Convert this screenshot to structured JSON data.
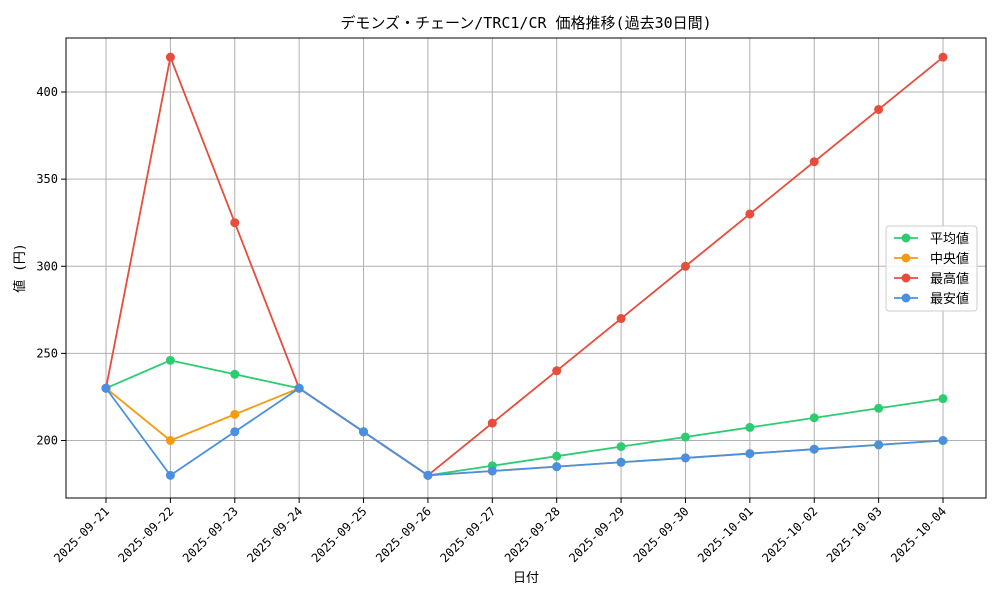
{
  "chart_data": {
    "type": "line",
    "title": "デモンズ・チェーン/TRC1/CR 価格推移(過去30日間)",
    "xlabel": "日付",
    "ylabel": "値 (円)",
    "categories": [
      "2025-09-21",
      "2025-09-22",
      "2025-09-23",
      "2025-09-24",
      "2025-09-25",
      "2025-09-26",
      "2025-09-27",
      "2025-09-28",
      "2025-09-29",
      "2025-09-30",
      "2025-10-01",
      "2025-10-02",
      "2025-10-03",
      "2025-10-04"
    ],
    "ylim": [
      167,
      431
    ],
    "yticks": [
      200,
      250,
      300,
      350,
      400
    ],
    "grid": true,
    "legend_position": "right",
    "series": [
      {
        "name": "平均値",
        "color": "#2ecc71",
        "values": [
          230,
          246,
          238,
          230,
          205,
          180,
          185.5,
          191,
          196.5,
          202,
          207.5,
          213,
          218.5,
          224
        ]
      },
      {
        "name": "中央値",
        "color": "#f39c12",
        "values": [
          230,
          200,
          215,
          230,
          205,
          180,
          182.5,
          185,
          187.5,
          190,
          192.5,
          195,
          197.5,
          200
        ]
      },
      {
        "name": "最高値",
        "color": "#e74c3c",
        "values": [
          230,
          420,
          325,
          230,
          205,
          180,
          210,
          240,
          270,
          300,
          330,
          360,
          390,
          420
        ]
      },
      {
        "name": "最安値",
        "color": "#4a90e2",
        "values": [
          230,
          180,
          205,
          230,
          205,
          180,
          182.5,
          185,
          187.5,
          190,
          192.5,
          195,
          197.5,
          200
        ]
      }
    ]
  }
}
